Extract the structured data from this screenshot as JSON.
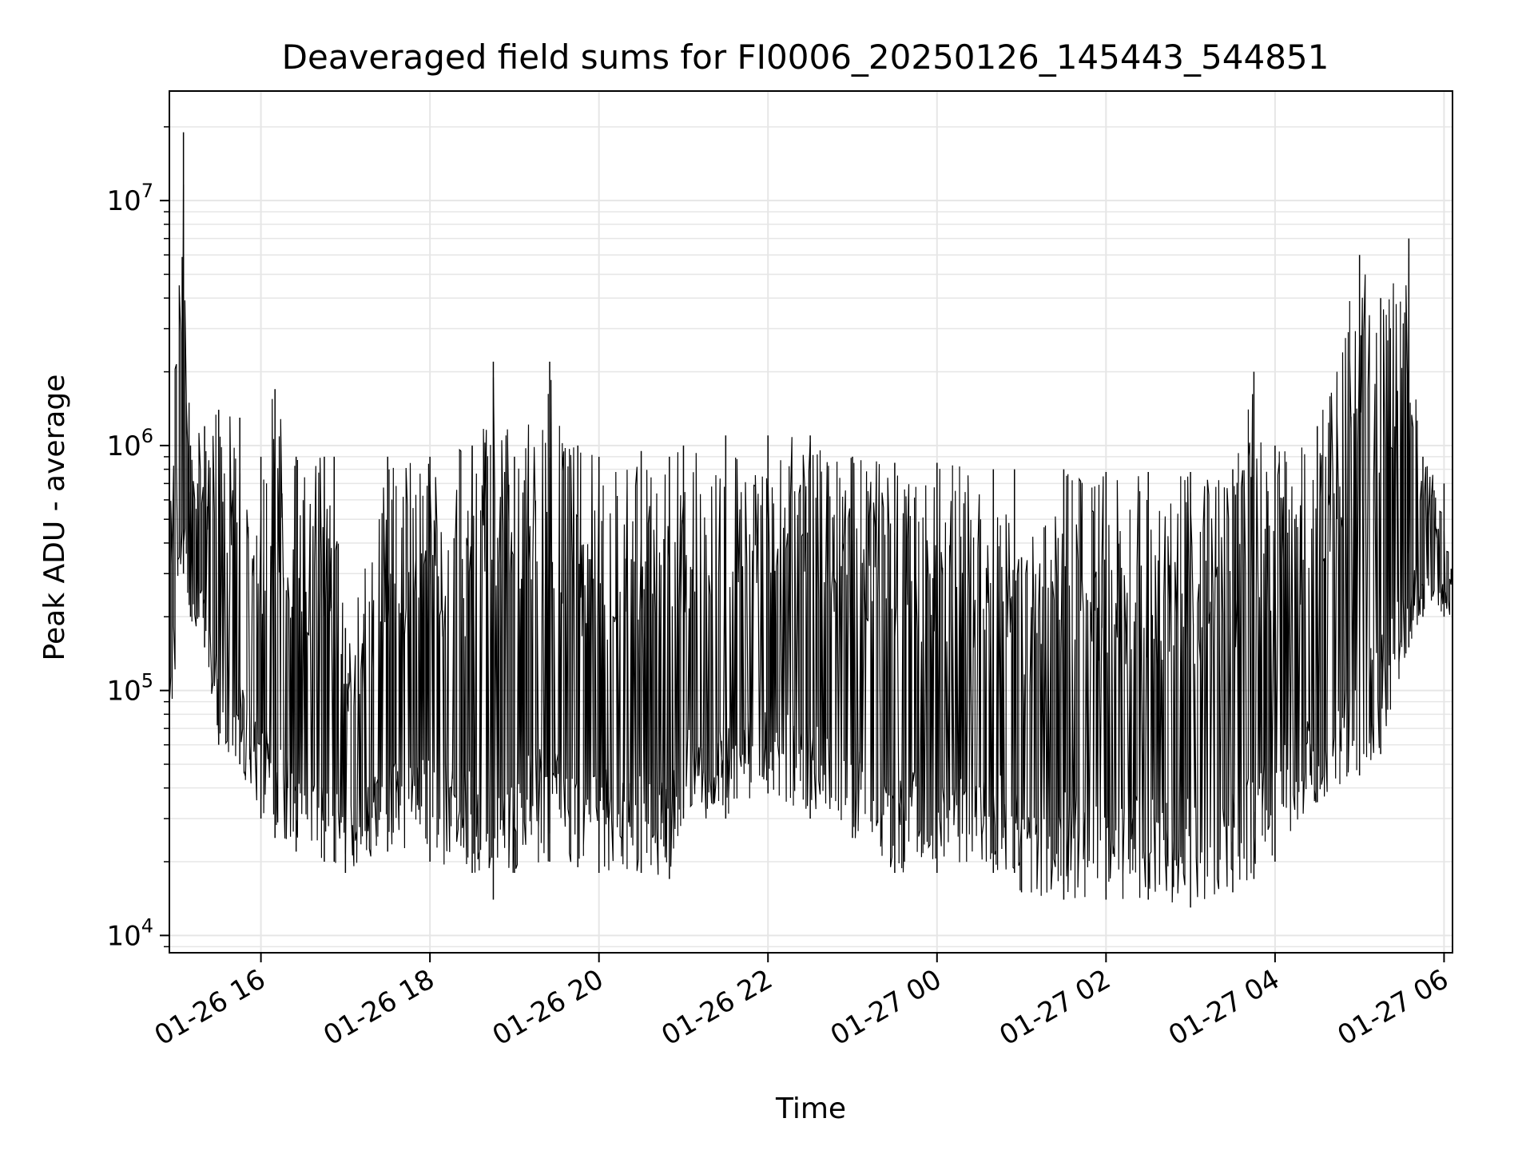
{
  "chart_data": {
    "type": "line",
    "title": "Deaveraged field sums for FI0006_20250126_145443_544851",
    "xlabel": "Time",
    "ylabel": "Peak ADU - average",
    "yscale": "log",
    "grid": true,
    "line_color": "#000000",
    "grid_color": "#e6e6e6",
    "xlim": [
      "2025-01-26 14:55",
      "2025-01-27 06:06"
    ],
    "ylim": [
      8500,
      28000000
    ],
    "x_ticks": [
      {
        "label": "01-26 16",
        "t": "2025-01-26 16:00"
      },
      {
        "label": "01-26 18",
        "t": "2025-01-26 18:00"
      },
      {
        "label": "01-26 20",
        "t": "2025-01-26 20:00"
      },
      {
        "label": "01-26 22",
        "t": "2025-01-26 22:00"
      },
      {
        "label": "01-27 00",
        "t": "2025-01-27 00:00"
      },
      {
        "label": "01-27 02",
        "t": "2025-01-27 02:00"
      },
      {
        "label": "01-27 04",
        "t": "2025-01-27 04:00"
      },
      {
        "label": "01-27 06",
        "t": "2025-01-27 06:00"
      }
    ],
    "y_ticks": [
      {
        "base": "10",
        "exp": "4",
        "value": 10000
      },
      {
        "base": "10",
        "exp": "5",
        "value": 100000
      },
      {
        "base": "10",
        "exp": "6",
        "value": 1000000
      },
      {
        "base": "10",
        "exp": "7",
        "value": 10000000
      }
    ],
    "series": [
      {
        "x": [
          "2025-01-26 14:55",
          "2025-01-26 15:05",
          "2025-01-26 15:10",
          "2025-01-26 15:20",
          "2025-01-26 15:30",
          "2025-01-26 15:45",
          "2025-01-26 16:00",
          "2025-01-26 16:10",
          "2025-01-26 16:25",
          "2025-01-26 16:45",
          "2025-01-26 16:52",
          "2025-01-26 17:00",
          "2025-01-26 17:30",
          "2025-01-26 18:00",
          "2025-01-26 18:30",
          "2025-01-26 18:45",
          "2025-01-26 19:00",
          "2025-01-26 19:25",
          "2025-01-26 19:45",
          "2025-01-26 20:00",
          "2025-01-26 20:30",
          "2025-01-26 20:50",
          "2025-01-26 21:00",
          "2025-01-26 21:30",
          "2025-01-26 22:00",
          "2025-01-26 22:30",
          "2025-01-26 23:00",
          "2025-01-26 23:30",
          "2025-01-27 00:00",
          "2025-01-27 00:40",
          "2025-01-27 00:55",
          "2025-01-27 01:00",
          "2025-01-27 01:30",
          "2025-01-27 02:00",
          "2025-01-27 02:30",
          "2025-01-27 03:00",
          "2025-01-27 03:30",
          "2025-01-27 03:45",
          "2025-01-27 04:00",
          "2025-01-27 04:30",
          "2025-01-27 05:00",
          "2025-01-27 05:15",
          "2025-01-27 05:35",
          "2025-01-27 05:45",
          "2025-01-27 06:00",
          "2025-01-27 06:06"
        ],
        "y_high": [
          300000,
          19000000,
          1000000,
          1200000,
          1400000,
          1300000,
          900000,
          1700000,
          900000,
          900000,
          900000,
          180000,
          900000,
          900000,
          1000000,
          2200000,
          900000,
          2200000,
          1000000,
          900000,
          950000,
          900000,
          1000000,
          1100000,
          1100000,
          1100000,
          900000,
          850000,
          850000,
          800000,
          800000,
          350000,
          800000,
          780000,
          780000,
          780000,
          800000,
          2000000,
          1000000,
          1200000,
          6000000,
          4000000,
          7000000,
          900000,
          700000,
          300000
        ],
        "y_low": [
          60000,
          300000,
          200000,
          150000,
          60000,
          50000,
          30000,
          25000,
          22000,
          20000,
          20000,
          18000,
          22000,
          20000,
          18000,
          14000,
          18000,
          20000,
          19000,
          18000,
          18000,
          17000,
          30000,
          30000,
          38000,
          30000,
          25000,
          18000,
          18000,
          18000,
          18000,
          15000,
          14000,
          14000,
          14000,
          13000,
          15000,
          17000,
          20000,
          35000,
          45000,
          55000,
          150000,
          200000,
          200000,
          200000
        ]
      }
    ]
  }
}
